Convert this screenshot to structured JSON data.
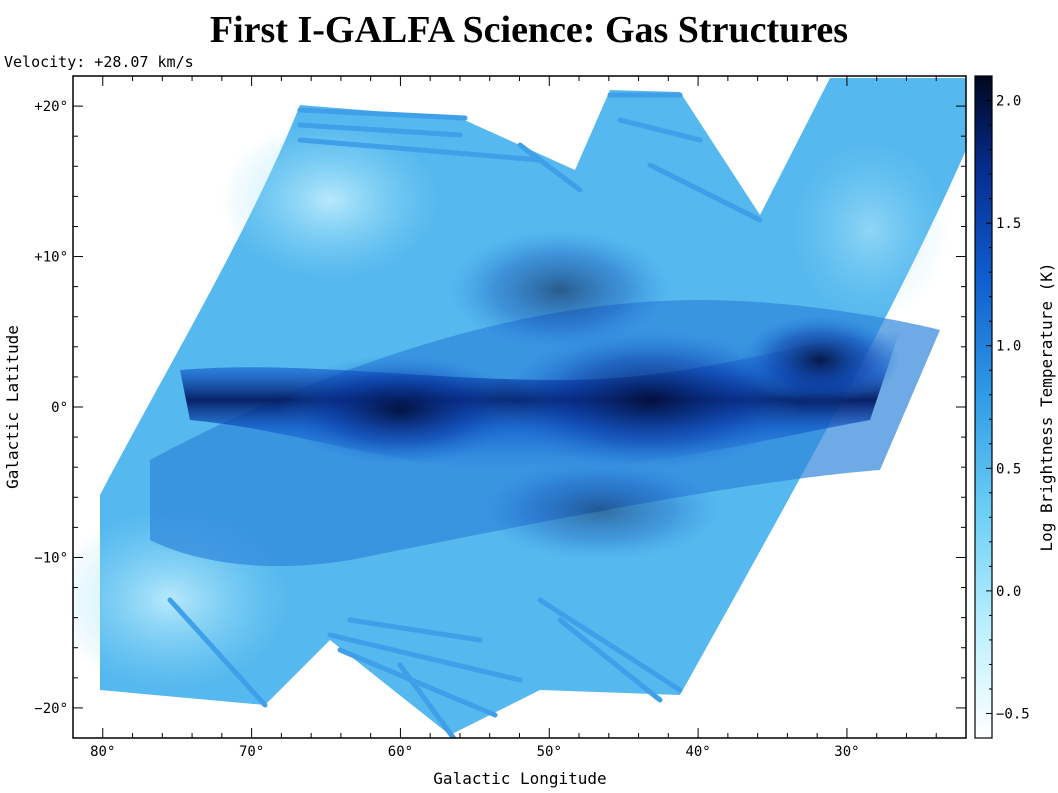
{
  "title": "First I-GALFA Science: Gas Structures",
  "velocity_label": "Velocity: +28.07 km/s",
  "chart_data": {
    "type": "heatmap",
    "title": "First I-GALFA Science: Gas Structures",
    "annotation": "Velocity: +28.07 km/s",
    "xlabel": "Galactic Longitude",
    "ylabel": "Galactic Latitude",
    "x_axis": {
      "range": [
        82,
        22
      ],
      "direction": "decreasing to the right",
      "major_ticks": [
        80,
        70,
        60,
        50,
        40,
        30
      ],
      "tick_labels": [
        "80°",
        "70°",
        "60°",
        "50°",
        "40°",
        "30°"
      ]
    },
    "y_axis": {
      "range": [
        -22,
        22
      ],
      "major_ticks": [
        20,
        10,
        0,
        -10,
        -20
      ],
      "tick_labels": [
        "+20°",
        "+10°",
        "0°",
        "−10°",
        "−20°"
      ]
    },
    "colorbar": {
      "label": "Log Brightness Temperature (K)",
      "range": [
        -0.6,
        2.1
      ],
      "ticks": [
        2.0,
        1.5,
        1.0,
        0.5,
        0.0,
        -0.5
      ],
      "tick_labels": [
        "2.0",
        "1.5",
        "1.0",
        "0.5",
        "0.0",
        "−0.5"
      ],
      "colors": [
        "#ffffff",
        "#bff0ff",
        "#6cd0f5",
        "#2f9ae6",
        "#0e5ccd",
        "#062c8f",
        "#000720"
      ]
    },
    "features": {
      "description_free": true,
      "survey_footprint": "slanted strip",
      "peak_emission_latitude": 0,
      "grid": false
    }
  },
  "colors": {
    "background": "#ffffff",
    "axis": "#000000"
  }
}
